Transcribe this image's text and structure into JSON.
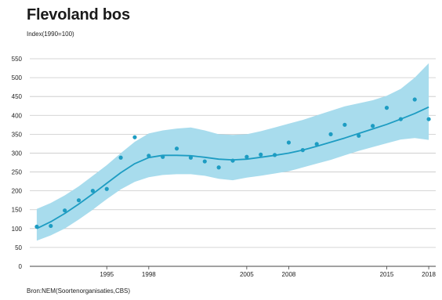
{
  "header": {
    "title": "Flevoland bos",
    "subtitle": "Index(1990=100)"
  },
  "footer": {
    "source": "Bron:NEM(Soortenorganisaties,CBS)"
  },
  "colors": {
    "band": "#a8dced",
    "trend": "#1d9cc2",
    "points": "#1d9cc2",
    "grid": "#c8c8c8",
    "axis": "#444444"
  },
  "chart_data": {
    "type": "scatter",
    "title": "Flevoland bos",
    "ylabel": "Index(1990=100)",
    "xlabel": "",
    "xlim": [
      1989.5,
      2018.5
    ],
    "ylim": [
      0,
      550
    ],
    "yticks": [
      0,
      50,
      100,
      150,
      200,
      250,
      300,
      350,
      400,
      450,
      500,
      550
    ],
    "xticks": [
      1995,
      1998,
      2005,
      2008,
      2015,
      2018
    ],
    "grid": true,
    "points": {
      "x": [
        1990,
        1991,
        1992,
        1993,
        1994,
        1995,
        1996,
        1997,
        1998,
        1999,
        2000,
        2001,
        2002,
        2003,
        2004,
        2005,
        2006,
        2007,
        2008,
        2009,
        2010,
        2011,
        2012,
        2013,
        2014,
        2015,
        2016,
        2017,
        2018
      ],
      "y": [
        105,
        107,
        148,
        175,
        200,
        205,
        288,
        342,
        293,
        290,
        312,
        288,
        278,
        262,
        280,
        290,
        296,
        295,
        328,
        308,
        324,
        350,
        375,
        346,
        372,
        420,
        390,
        442,
        390
      ]
    },
    "trend": {
      "x": [
        1990,
        1991,
        1992,
        1993,
        1994,
        1995,
        1996,
        1997,
        1998,
        1999,
        2000,
        2001,
        2002,
        2003,
        2004,
        2005,
        2006,
        2007,
        2008,
        2009,
        2010,
        2011,
        2012,
        2013,
        2014,
        2015,
        2016,
        2017,
        2018
      ],
      "y": [
        100,
        118,
        140,
        165,
        192,
        220,
        248,
        272,
        288,
        294,
        294,
        293,
        289,
        284,
        282,
        284,
        289,
        294,
        300,
        308,
        318,
        329,
        340,
        352,
        364,
        376,
        390,
        405,
        422
      ]
    },
    "band": {
      "x": [
        1990,
        1991,
        1992,
        1993,
        1994,
        1995,
        1996,
        1997,
        1998,
        1999,
        2000,
        2001,
        2002,
        2003,
        2004,
        2005,
        2006,
        2007,
        2008,
        2009,
        2010,
        2011,
        2012,
        2013,
        2014,
        2015,
        2016,
        2017,
        2018
      ],
      "upper": [
        152,
        168,
        188,
        212,
        240,
        268,
        300,
        330,
        352,
        360,
        365,
        368,
        360,
        350,
        348,
        350,
        358,
        368,
        378,
        388,
        400,
        412,
        424,
        432,
        440,
        452,
        470,
        500,
        538
      ],
      "lower": [
        68,
        82,
        100,
        124,
        150,
        178,
        204,
        224,
        236,
        242,
        244,
        244,
        240,
        232,
        228,
        235,
        240,
        246,
        252,
        262,
        272,
        282,
        294,
        306,
        316,
        326,
        336,
        340,
        335
      ]
    }
  }
}
